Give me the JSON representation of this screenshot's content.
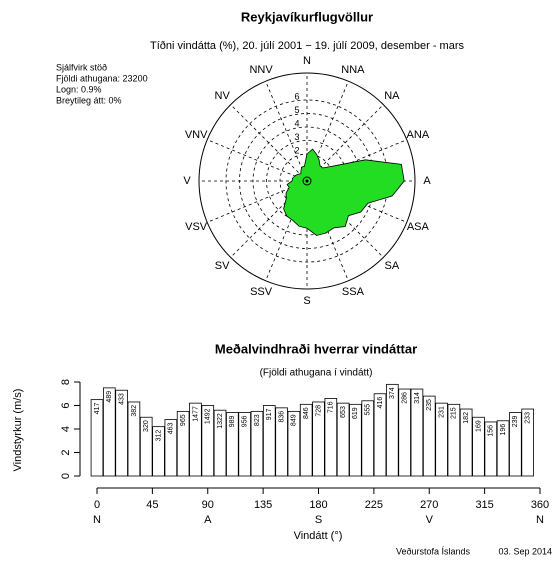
{
  "chart_data": [
    {
      "type": "rose",
      "title": "Reykjavíkurflugvöllur",
      "subtitle": "Tíðni vindátta (%), 20. júlí 2001 − 19. júlí 2009, desember - mars",
      "annotations": [
        "Sjálfvirk stöð",
        "Fjöldi athugana: 23200",
        "Logn: 0.9%",
        "Breytileg átt: 0%"
      ],
      "directions": [
        "N",
        "NNA",
        "NA",
        "ANA",
        "A",
        "ASA",
        "SA",
        "SSA",
        "S",
        "SSV",
        "SV",
        "VSV",
        "V",
        "VNV",
        "NV",
        "NNV"
      ],
      "theta": [
        0,
        10,
        20,
        30,
        40,
        50,
        60,
        70,
        80,
        90,
        100,
        110,
        120,
        130,
        140,
        150,
        160,
        170,
        180,
        190,
        200,
        210,
        220,
        230,
        240,
        250,
        260,
        270,
        280,
        290,
        300,
        310,
        320,
        330,
        340,
        350
      ],
      "values": [
        2.0,
        2.4,
        2.1,
        1.8,
        1.5,
        1.5,
        2.2,
        4.6,
        7.1,
        7.2,
        6.4,
        4.8,
        4.6,
        4.0,
        4.4,
        4.0,
        4.1,
        4.1,
        3.5,
        3.4,
        3.1,
        3.0,
        2.7,
        2.0,
        1.8,
        1.4,
        1.5,
        1.1,
        1.1,
        1.0,
        0.9,
        0.8,
        0.7,
        0.9,
        1.1,
        1.1
      ],
      "rlim": [
        0,
        8
      ],
      "rticks": [
        2,
        3,
        4,
        5,
        6
      ],
      "color": "#22dd22"
    },
    {
      "type": "bar",
      "title": "Meðalvindhraði hverrar vindáttar",
      "subtitle": "(Fjöldi athugana í vindátt)",
      "xlabel": "Vindátt (°)",
      "ylabel": "Vindstyrkur (m/s)",
      "x": [
        0,
        10,
        20,
        30,
        40,
        50,
        60,
        70,
        80,
        90,
        100,
        110,
        120,
        130,
        140,
        150,
        160,
        170,
        180,
        190,
        200,
        210,
        220,
        230,
        240,
        250,
        260,
        270,
        280,
        290,
        300,
        310,
        320,
        330,
        340,
        350
      ],
      "values": [
        6.5,
        7.5,
        7.3,
        6.3,
        5.0,
        4.2,
        4.8,
        5.5,
        6.2,
        6.0,
        5.6,
        5.4,
        5.4,
        5.5,
        6.0,
        5.8,
        5.5,
        6.1,
        6.3,
        6.6,
        6.2,
        6.1,
        6.4,
        7.0,
        7.8,
        7.4,
        7.4,
        6.8,
        6.2,
        6.1,
        5.7,
        5.0,
        4.6,
        4.7,
        5.4,
        5.7
      ],
      "counts": [
        417,
        489,
        433,
        382,
        320,
        312,
        463,
        965,
        1477,
        1492,
        1322,
        989,
        956,
        823,
        917,
        836,
        849,
        846,
        728,
        716,
        653,
        619,
        555,
        416,
        374,
        286,
        314,
        235,
        231,
        215,
        182,
        169,
        156,
        196,
        239,
        233
      ],
      "xlim": [
        0,
        360
      ],
      "xticks": [
        0,
        45,
        90,
        135,
        180,
        225,
        270,
        315,
        360
      ],
      "xticks2": [
        {
          "value": 0,
          "label": "N"
        },
        {
          "value": 90,
          "label": "A"
        },
        {
          "value": 180,
          "label": "S"
        },
        {
          "value": 270,
          "label": "V"
        },
        {
          "value": 360,
          "label": "N"
        }
      ],
      "ylim": [
        0,
        8
      ],
      "yticks": [
        0,
        2,
        4,
        6,
        8
      ],
      "color": "#ffffff"
    }
  ],
  "footer": {
    "source": "Veðurstofa Íslands",
    "date": "03. Sep 2014"
  }
}
